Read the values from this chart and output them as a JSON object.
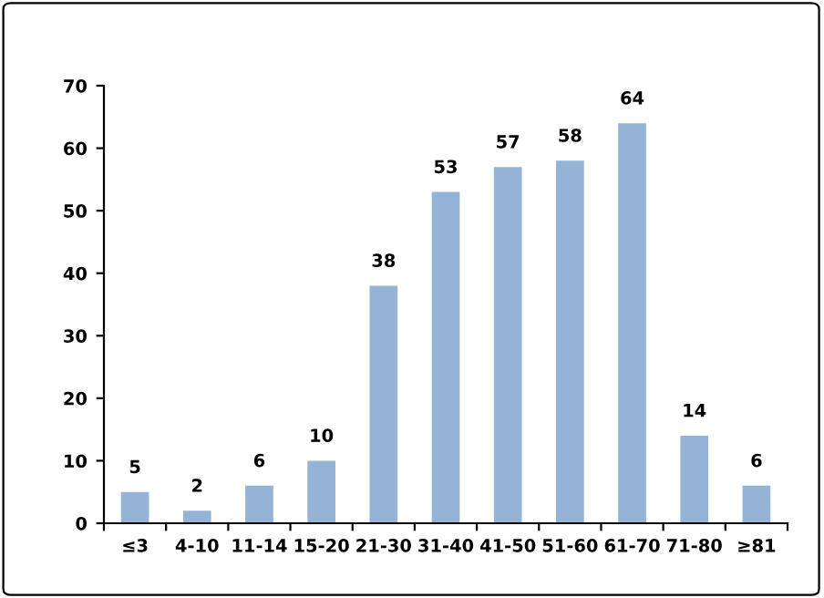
{
  "chart_data": {
    "type": "bar",
    "categories": [
      "≤3",
      "4-10",
      "11-14",
      "15-20",
      "21-30",
      "31-40",
      "41-50",
      "51-60",
      "61-70",
      "71-80",
      "≥81"
    ],
    "values": [
      5,
      2,
      6,
      10,
      38,
      53,
      57,
      58,
      64,
      14,
      6
    ],
    "color": "#95b3d7",
    "ylim": [
      0,
      70
    ],
    "yticks": [
      0,
      10,
      20,
      30,
      40,
      50,
      60,
      70
    ],
    "grid": false,
    "data_labels": true
  }
}
